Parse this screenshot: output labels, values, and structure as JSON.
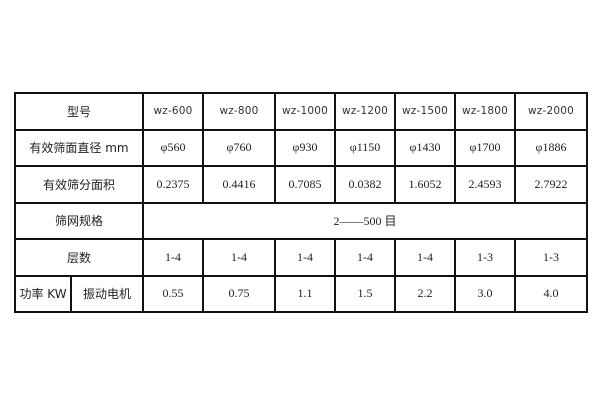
{
  "table": {
    "header_label": "型号",
    "models": [
      "wz-600",
      "wz-800",
      "wz-1000",
      "wz-1200",
      "wz-1500",
      "wz-1800",
      "wz-2000"
    ],
    "rows": [
      {
        "label": "有效筛面直径 mm",
        "values": [
          "φ560",
          "φ760",
          "φ930",
          "φ1150",
          "φ1430",
          "φ1700",
          "φ1886"
        ]
      },
      {
        "label": "有效筛分面积",
        "values": [
          "0.2375",
          "0.4416",
          "0.7085",
          "0.0382",
          "1.6052",
          "2.4593",
          "2.7922"
        ]
      }
    ],
    "mesh": {
      "label": "筛网规格",
      "value": "2——500 目"
    },
    "layers": {
      "label": "层数",
      "values": [
        "1-4",
        "1-4",
        "1-4",
        "1-4",
        "1-4",
        "1-3",
        "1-3"
      ]
    },
    "power": {
      "label": "功率 KW",
      "sublabel": "振动电机",
      "values": [
        "0.55",
        "0.75",
        "1.1",
        "1.5",
        "2.2",
        "3.0",
        "4.0"
      ]
    }
  }
}
